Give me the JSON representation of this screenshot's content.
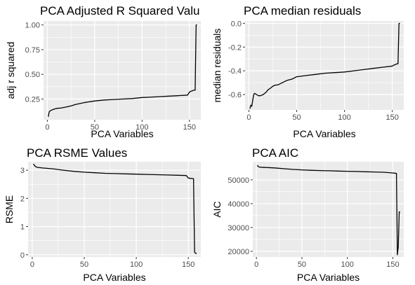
{
  "chart_data": [
    {
      "type": "line",
      "title": "PCA Adjusted R Squared Valu",
      "xlabel": "PCA Variables",
      "ylabel": "adj r squared",
      "xlim": [
        -4,
        162
      ],
      "ylim": [
        0.04,
        1.04
      ],
      "xticks": [
        0,
        50,
        100,
        150
      ],
      "xtick_labels": [
        "0",
        "50",
        "100",
        "150"
      ],
      "yticks": [
        0.25,
        0.5,
        0.75,
        1.0
      ],
      "ytick_labels": [
        "0.25",
        "0.50",
        "0.75",
        "1.00"
      ],
      "grid": true,
      "series": [
        {
          "name": "adj r squared",
          "x": [
            1,
            2,
            3,
            5,
            8,
            10,
            15,
            20,
            25,
            30,
            40,
            50,
            60,
            70,
            80,
            90,
            100,
            110,
            120,
            130,
            140,
            148,
            150,
            152,
            155,
            156,
            157,
            158
          ],
          "y": [
            0.07,
            0.12,
            0.13,
            0.14,
            0.15,
            0.155,
            0.16,
            0.17,
            0.18,
            0.195,
            0.215,
            0.23,
            0.24,
            0.245,
            0.25,
            0.255,
            0.265,
            0.27,
            0.275,
            0.28,
            0.285,
            0.29,
            0.32,
            0.33,
            0.34,
            0.34,
            1.0,
            1.0
          ]
        }
      ]
    },
    {
      "type": "line",
      "title": "PCA median residuals",
      "xlabel": "PCA Variables",
      "ylabel": "median residuals",
      "xlim": [
        -4,
        162
      ],
      "ylim": [
        -0.73,
        0.02
      ],
      "xticks": [
        0,
        50,
        100,
        150
      ],
      "xtick_labels": [
        "0",
        "50",
        "100",
        "150"
      ],
      "yticks": [
        -0.6,
        -0.4,
        -0.2,
        0.0
      ],
      "ytick_labels": [
        "-0.6",
        "-0.4",
        "-0.2",
        "0.0"
      ],
      "grid": true,
      "series": [
        {
          "name": "median residuals",
          "x": [
            1,
            2,
            3,
            4,
            5,
            6,
            8,
            10,
            12,
            15,
            18,
            20,
            22,
            25,
            28,
            30,
            35,
            40,
            45,
            50,
            60,
            70,
            80,
            90,
            100,
            110,
            120,
            130,
            140,
            150,
            152,
            154,
            155,
            156,
            157,
            158
          ],
          "y": [
            -0.72,
            -0.69,
            -0.7,
            -0.65,
            -0.6,
            -0.59,
            -0.6,
            -0.61,
            -0.61,
            -0.6,
            -0.58,
            -0.56,
            -0.55,
            -0.53,
            -0.52,
            -0.52,
            -0.5,
            -0.48,
            -0.47,
            -0.45,
            -0.44,
            -0.43,
            -0.42,
            -0.415,
            -0.41,
            -0.4,
            -0.39,
            -0.38,
            -0.37,
            -0.36,
            -0.35,
            -0.345,
            -0.34,
            -0.34,
            0.0,
            0.0
          ]
        }
      ]
    },
    {
      "type": "line",
      "title": "PCA RSME Values",
      "xlabel": "PCA Variables",
      "ylabel": "RSME",
      "xlim": [
        -4,
        162
      ],
      "ylim": [
        -0.08,
        3.3
      ],
      "xticks": [
        0,
        50,
        100,
        150
      ],
      "xtick_labels": [
        "0",
        "50",
        "100",
        "150"
      ],
      "yticks": [
        0,
        1,
        2,
        3
      ],
      "ytick_labels": [
        "0",
        "1",
        "2",
        "3"
      ],
      "grid": true,
      "series": [
        {
          "name": "RSME",
          "x": [
            1,
            2,
            3,
            5,
            10,
            20,
            30,
            40,
            50,
            60,
            70,
            80,
            90,
            100,
            110,
            120,
            130,
            140,
            148,
            150,
            152,
            155,
            156,
            157,
            158
          ],
          "y": [
            3.22,
            3.18,
            3.13,
            3.1,
            3.08,
            3.05,
            3.0,
            2.96,
            2.93,
            2.91,
            2.89,
            2.88,
            2.87,
            2.86,
            2.85,
            2.84,
            2.83,
            2.82,
            2.81,
            2.72,
            2.71,
            2.7,
            0.1,
            0.05,
            0.04
          ]
        }
      ]
    },
    {
      "type": "line",
      "title": "PCA AIC",
      "xlabel": "PCA Variables",
      "ylabel": "AIC",
      "xlim": [
        -4,
        162
      ],
      "ylim": [
        17600,
        57600
      ],
      "xticks": [
        0,
        50,
        100,
        150
      ],
      "xtick_labels": [
        "0",
        "50",
        "100",
        "150"
      ],
      "yticks": [
        20000,
        30000,
        40000,
        50000
      ],
      "ytick_labels": [
        "20000",
        "30000",
        "40000",
        "50000"
      ],
      "grid": true,
      "series": [
        {
          "name": "AIC",
          "x": [
            1,
            2,
            3,
            5,
            10,
            20,
            30,
            40,
            50,
            60,
            70,
            80,
            90,
            100,
            110,
            120,
            130,
            140,
            150,
            152,
            154,
            155,
            156,
            157,
            158
          ],
          "y": [
            56200,
            55600,
            55400,
            55300,
            55200,
            55000,
            54700,
            54400,
            54200,
            54000,
            53900,
            53800,
            53700,
            53600,
            53500,
            53400,
            53300,
            53200,
            52900,
            52800,
            52700,
            18500,
            22000,
            36500,
            36500
          ]
        }
      ]
    }
  ]
}
